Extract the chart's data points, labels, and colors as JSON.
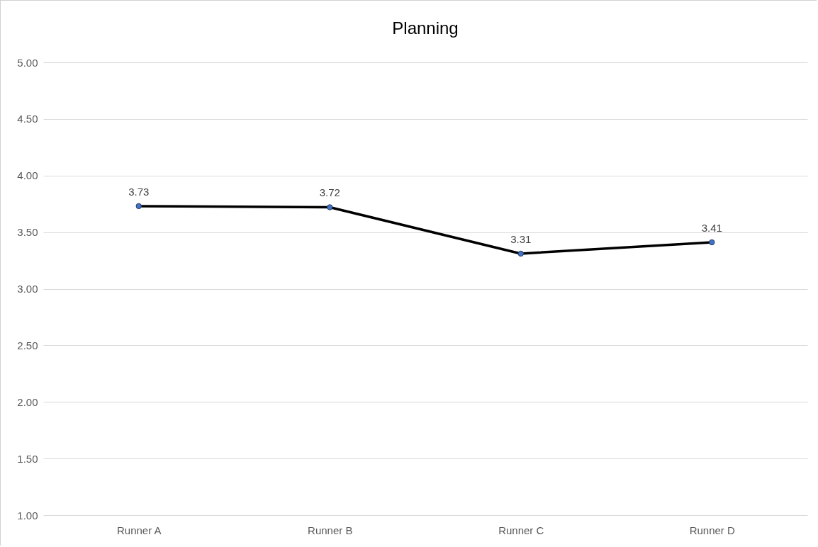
{
  "chart_data": {
    "type": "line",
    "title": "Planning",
    "categories": [
      "Runner A",
      "Runner B",
      "Runner C",
      "Runner D"
    ],
    "series": [
      {
        "color": "#000000",
        "colors": [
          "#4472c4",
          "#4472c4",
          "#4472c4",
          "#4472c4"
        ],
        "values": [
          3.73,
          3.72,
          3.31,
          3.41
        ]
      }
    ],
    "ylim": [
      1,
      5
    ],
    "yticks": [
      {
        "value": 1,
        "label": "1.00"
      },
      {
        "value": 1.5,
        "label": "1.50"
      },
      {
        "value": 2,
        "label": "2.00"
      },
      {
        "value": 2.5,
        "label": "2.50"
      },
      {
        "value": 3,
        "label": "3.00"
      },
      {
        "value": 3.5,
        "label": "3.50"
      },
      {
        "value": 4,
        "label": "4.00"
      },
      {
        "value": 4.5,
        "label": "4.50"
      },
      {
        "value": 5,
        "label": "5.00"
      }
    ],
    "grid": "y",
    "marker": "circle",
    "line_style": "solid",
    "data_labels": true
  }
}
